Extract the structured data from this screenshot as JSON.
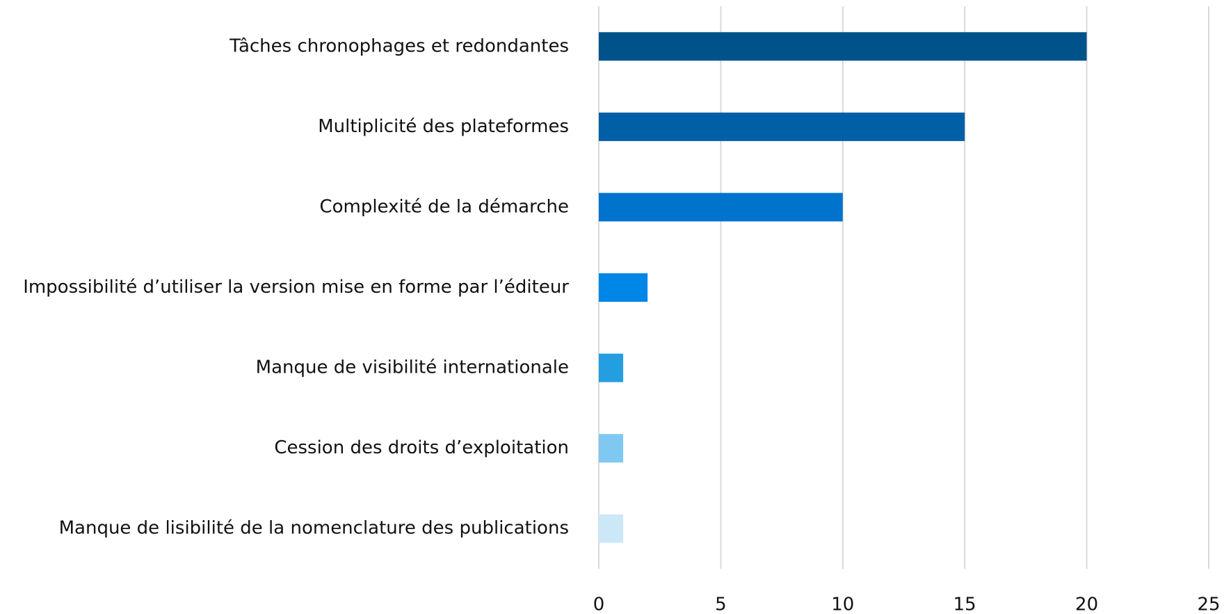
{
  "chart_data": {
    "type": "bar",
    "orientation": "horizontal",
    "categories": [
      "Tâches chronophages et redondantes",
      "Multiplicité des plateformes",
      "Complexité de la démarche",
      "Impossibilité d’utiliser la version mise en forme par l’éditeur",
      "Manque de visibilité internationale",
      "Cession des droits d’exploitation",
      "Manque de lisibilité de la nomenclature des publications"
    ],
    "values": [
      20,
      15,
      10,
      2,
      1,
      1,
      1
    ],
    "colors": [
      "#00538a",
      "#005fa6",
      "#0074cc",
      "#0086e6",
      "#249ee0",
      "#7fc8f2",
      "#cce8f8"
    ],
    "xlim": [
      0,
      25
    ],
    "xticks": [
      0,
      5,
      10,
      15,
      20,
      25
    ],
    "grid": true
  }
}
